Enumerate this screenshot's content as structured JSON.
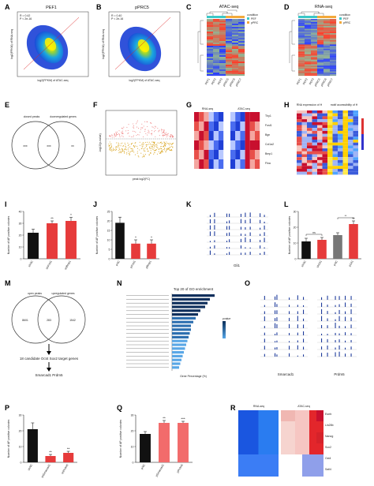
{
  "panels": {
    "A": {
      "letter": "A",
      "title": "PEF1",
      "r": "R = 0.42",
      "p": "P < 2e-16",
      "xlabel": "log2(FPKM) of ATAC-seq",
      "ylabel": "log2(FPKM) of RNA-seq"
    },
    "B": {
      "letter": "B",
      "title": "pPRC5",
      "r": "R = 0.40",
      "p": "P < 2e-16",
      "xlabel": "log2(FPKM) of ATAC-seq",
      "ylabel": "log2(FPKM) of RNA-seq"
    },
    "C": {
      "letter": "C",
      "title": "ATAC-seq",
      "samples": [
        "PEF1",
        "PEF2",
        "PEF3",
        "pPRC5",
        "pPRC6",
        "pPRC7"
      ],
      "legend_title": "condition",
      "legend": [
        "PEF",
        "pPRC"
      ]
    },
    "D": {
      "letter": "D",
      "title": "RNA-seq",
      "samples": [
        "PEF1",
        "PEF2",
        "PEF3",
        "pPRC5",
        "pPRC6",
        "pPRC7"
      ],
      "legend_title": "condition",
      "legend": [
        "PEF",
        "pPRC"
      ]
    },
    "E": {
      "letter": "E",
      "left": "closed peaks",
      "right": "downregulated genes",
      "a": "xxx",
      "ab": "xxx",
      "b": "xx"
    },
    "F": {
      "letter": "F",
      "xlabel": "peak log2(FC)",
      "ylabel": "-log10(p-value)"
    },
    "G": {
      "letter": "G",
      "left": "RNA-seq",
      "right": "ATAC-seq",
      "genes": [
        "Thy1",
        "Fosl1",
        "Bgn",
        "Col1a2",
        "Bmp1",
        "Flna"
      ]
    },
    "H": {
      "letter": "H",
      "left": "RNA expression of H",
      "right": "motif accessibility of H"
    },
    "I": {
      "letter": "I",
      "ylabel": "Number of AP positive colonies"
    },
    "J": {
      "letter": "J",
      "ylabel": "Number of AP positive colonies"
    },
    "K": {
      "letter": "K",
      "gene": "Gli1"
    },
    "L": {
      "letter": "L",
      "ylabel": "Number of AP positive colonies"
    },
    "M": {
      "letter": "M",
      "left": "open peaks",
      "right": "upregulated genes",
      "a": "8601",
      "ab": "283",
      "b": "1542",
      "arrow_text": "18 candidate Oct4 Sox2 target genes",
      "genes": "Smarcad1  Prdm5"
    },
    "N": {
      "letter": "N",
      "title": "Top 20 of GO enrichment",
      "xlabel": "Gene Percentage (%)",
      "legend_title": "pvalue"
    },
    "O": {
      "letter": "O",
      "gene1": "Smarcad1",
      "gene2": "Prdm5"
    },
    "P": {
      "letter": "P",
      "ylabel": "Number of AP positive colonies"
    },
    "Q": {
      "letter": "Q",
      "ylabel": "Number of AP positive colonies"
    },
    "R": {
      "letter": "R",
      "left": "RNA-seq",
      "right": "ATAC-seq",
      "genes": [
        "Esrrb",
        "Lin28b",
        "Nanog",
        "Sox2",
        "Oct4",
        "Sall4"
      ]
    }
  },
  "chart_data": [
    {
      "panel": "I",
      "type": "bar",
      "categories": [
        "shNC",
        "shFosl1",
        "shBmp1"
      ],
      "values": [
        22,
        30,
        32
      ],
      "errors": [
        3,
        2,
        3
      ],
      "significance": [
        "",
        "**",
        "*"
      ],
      "ylim": [
        0,
        40
      ],
      "yticks": [
        0,
        10,
        20,
        30,
        40
      ],
      "colors": [
        "#111111",
        "#e63b3b",
        "#e63b3b"
      ]
    },
    {
      "panel": "J",
      "type": "bar",
      "categories": [
        "pNC",
        "pFosl1",
        "pBmp1"
      ],
      "values": [
        19,
        8,
        8
      ],
      "errors": [
        3,
        2,
        2
      ],
      "significance": [
        "",
        "*",
        "*"
      ],
      "ylim": [
        0,
        25
      ],
      "yticks": [
        0,
        5,
        10,
        15,
        20,
        25
      ],
      "colors": [
        "#111111",
        "#e63b3b",
        "#e63b3b"
      ]
    },
    {
      "panel": "L",
      "type": "bar",
      "categories": [
        "shNC",
        "shGli1",
        "pNC",
        "pGli1"
      ],
      "values": [
        11,
        12,
        15,
        22
      ],
      "errors": [
        2,
        1.5,
        1.5,
        2
      ],
      "significance": [
        "",
        "ns",
        "",
        "**"
      ],
      "ylim": [
        0,
        30
      ],
      "yticks": [
        0,
        10,
        20,
        30
      ],
      "colors": [
        "#111111",
        "#e63b3b",
        "#777777",
        "#e63b3b"
      ]
    },
    {
      "panel": "P",
      "type": "bar",
      "categories": [
        "shNC",
        "shSmarcad1",
        "shPrdm5"
      ],
      "values": [
        21,
        4,
        6
      ],
      "errors": [
        4,
        1,
        1
      ],
      "significance": [
        "",
        "**",
        "**"
      ],
      "ylim": [
        0,
        30
      ],
      "yticks": [
        0,
        10,
        20,
        30
      ],
      "colors": [
        "#111111",
        "#e63b3b",
        "#e63b3b"
      ]
    },
    {
      "panel": "Q",
      "type": "bar",
      "categories": [
        "pNC",
        "pSmarcad1",
        "pPrdm5"
      ],
      "values": [
        18,
        25,
        25
      ],
      "errors": [
        1.5,
        1.5,
        1
      ],
      "significance": [
        "",
        "**",
        "***"
      ],
      "ylim": [
        0,
        30
      ],
      "yticks": [
        0,
        10,
        20,
        30
      ],
      "colors": [
        "#111111",
        "#f26b6b",
        "#f26b6b"
      ]
    }
  ]
}
